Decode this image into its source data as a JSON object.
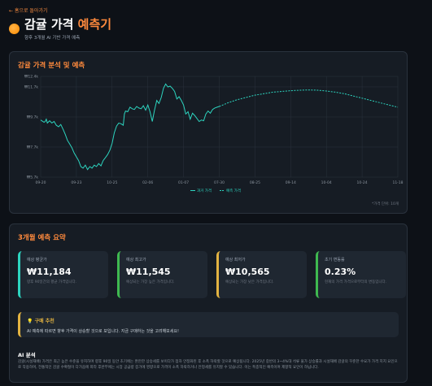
{
  "nav": {
    "back_label": "← 홈으로 돌아가기"
  },
  "header": {
    "title_main": "감귤 가격 ",
    "title_accent": "예측기",
    "subtitle": "향후 3개월 AI 기반 가격 예측"
  },
  "chart_section": {
    "title": "감귤 가격 분석 및 예측",
    "unit_note": "*가격 단위: 10개"
  },
  "chart_data": {
    "type": "line",
    "y_ticks": [
      "₩12.4k",
      "₩11.7k",
      "₩9.7k",
      "₩7.7k",
      "₩5.7k"
    ],
    "ylim": [
      5700,
      12400
    ],
    "x_tick_labels": [
      "09-20",
      "09-23",
      "10-25",
      "02-06",
      "01-07",
      "07-30",
      "08-25",
      "09-14",
      "10-04",
      "10-24",
      "11-18"
    ],
    "legend": [
      "과거 가격",
      "예측 가격"
    ],
    "grid": true,
    "series": [
      {
        "name": "과거 가격",
        "color": "#2dd4bf",
        "x": [
          0,
          1.5,
          2,
          2.5,
          3,
          4,
          5,
          6,
          7,
          8,
          9,
          10,
          11,
          12,
          13,
          14,
          15,
          16,
          17,
          18,
          19,
          20,
          21,
          22,
          23,
          24,
          25,
          26,
          27,
          28,
          29,
          30,
          31,
          32,
          33,
          34,
          35,
          36,
          37,
          37.5,
          38,
          39,
          40,
          41,
          42,
          43,
          44,
          45,
          46,
          47,
          48,
          49,
          50,
          51,
          52,
          53,
          54,
          55,
          56,
          57,
          58,
          59,
          60,
          61,
          62,
          63,
          64,
          65,
          66,
          67,
          68,
          69,
          70,
          71,
          72,
          73,
          74,
          75,
          76,
          77,
          78,
          79,
          80
        ],
        "y": [
          9500,
          9350,
          9400,
          9550,
          9300,
          9450,
          9300,
          9400,
          9150,
          9050,
          9200,
          8900,
          8550,
          8150,
          7900,
          7650,
          7300,
          7050,
          6800,
          6400,
          6300,
          6500,
          6200,
          6400,
          6300,
          6500,
          6400,
          6600,
          6450,
          6800,
          7000,
          7200,
          7500,
          7950,
          8650,
          9100,
          9300,
          9250,
          9150,
          9900,
          10100,
          10050,
          10350,
          10250,
          10200,
          10400,
          10300,
          10250,
          10450,
          10150,
          10500,
          10050,
          9400,
          10150,
          10800,
          10600,
          11000,
          11600,
          11900,
          11700,
          11750,
          11600,
          11400,
          10900,
          11050,
          10800,
          10500,
          9900,
          10050,
          9550,
          9950,
          9800,
          9600,
          9400,
          9500,
          9450,
          9900,
          10100,
          9950,
          10200,
          10300,
          10350,
          10400
        ]
      },
      {
        "name": "예측 가격",
        "color": "#2dd4bf",
        "dashed": true,
        "x": [
          80,
          84,
          88,
          92,
          96,
          100,
          104,
          108,
          112,
          116,
          120,
          124,
          128,
          132,
          136,
          140,
          144,
          148,
          152,
          156,
          160
        ],
        "y": [
          10400,
          10650,
          10850,
          11000,
          11150,
          11250,
          11350,
          11400,
          11450,
          11480,
          11500,
          11480,
          11430,
          11350,
          11250,
          11100,
          10950,
          10800,
          10650,
          10500,
          10350
        ]
      }
    ]
  },
  "summary": {
    "title": "3개월 예측 요약",
    "stats": [
      {
        "label": "예상 평균가",
        "value": "₩11,184",
        "desc": "향후 90일간의 평균 가격입니다.",
        "color": "#2dd4bf"
      },
      {
        "label": "예상 최고가",
        "value": "₩11,545",
        "desc": "예상되는 가장 높은 가격입니다.",
        "color": "#3fb950"
      },
      {
        "label": "예상 최저가",
        "value": "₩10,565",
        "desc": "예상되는 가장 낮은 가격입니다.",
        "color": "#e3b341"
      },
      {
        "label": "초기 변동률",
        "value": "0.23%",
        "desc": "현재의 가격 가격으로부터의 변동입니다.",
        "color": "#3fb950"
      }
    ],
    "recommend_title": "구매 추천",
    "recommend_text": "AI 예측에 따르면 향후 가격이 상승할 것으로 보입니다. 지금 구매하는 것을 고려해보세요!",
    "ai_title": "AI 분석",
    "ai_text": "감귤(시설재배) 가격은 최근 높은 수준을 유지하며 향후 90일 동안 초기에는 완만한 상승세를 보이다가 점차 안정화된 후 소폭 하락할 것으로 예상됩니다. 2025년 중반의 3~4%대 석류 물가 상승률과 시설재배 감귤의 꾸준한 수요가 가격 지지 요인으로 작용하며, 전통적인 감귤 수확철이 다가옴에 따라 후반부에는 시장 공급량 증가에 영향으로 가격이 소폭 하락하거나 안정세를 유지할 수 있습니다. 이는 특종적인 예측이며 제향적 요인이 하닙니다."
  }
}
